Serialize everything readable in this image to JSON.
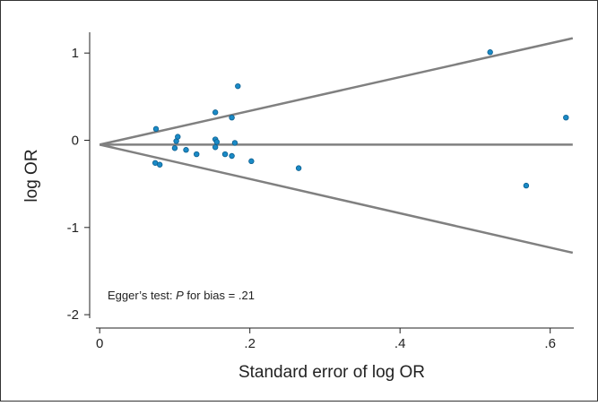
{
  "chart_data": {
    "type": "scatter",
    "xlabel": "Standard error of log OR",
    "ylabel": "log OR",
    "annotation": [
      "Egger’s test: ",
      "P",
      " for bias = .21"
    ],
    "x": [
      0.075,
      0.074,
      0.08,
      0.1,
      0.102,
      0.104,
      0.115,
      0.129,
      0.154,
      0.154,
      0.156,
      0.154,
      0.167,
      0.176,
      0.176,
      0.18,
      0.184,
      0.202,
      0.265,
      0.52,
      0.568,
      0.621
    ],
    "values": [
      0.13,
      -0.26,
      -0.28,
      -0.09,
      -0.01,
      0.04,
      -0.11,
      -0.16,
      0.32,
      0.01,
      -0.02,
      -0.08,
      -0.16,
      0.26,
      -0.18,
      -0.03,
      0.62,
      -0.24,
      -0.32,
      1.01,
      -0.52,
      0.26
    ],
    "color": "#1a8ac6",
    "lines": [
      {
        "x": [
          0,
          0.63
        ],
        "y": [
          -0.05,
          -0.05
        ]
      },
      {
        "x": [
          0,
          0.63
        ],
        "y": [
          -0.05,
          1.17
        ]
      },
      {
        "x": [
          0,
          0.63
        ],
        "y": [
          -0.05,
          -1.29
        ]
      }
    ],
    "line_color": "#808080",
    "xlim": [
      -0.005,
      0.635
    ],
    "ylim": [
      -2.04,
      1.3
    ],
    "xticks": [
      0,
      {
        "value": 0.2,
        "label": ".2"
      },
      {
        "value": 0.4,
        "label": ".4"
      },
      {
        "value": 0.6,
        "label": ".6"
      }
    ],
    "yticks": [
      -2,
      -1,
      0,
      1
    ]
  }
}
